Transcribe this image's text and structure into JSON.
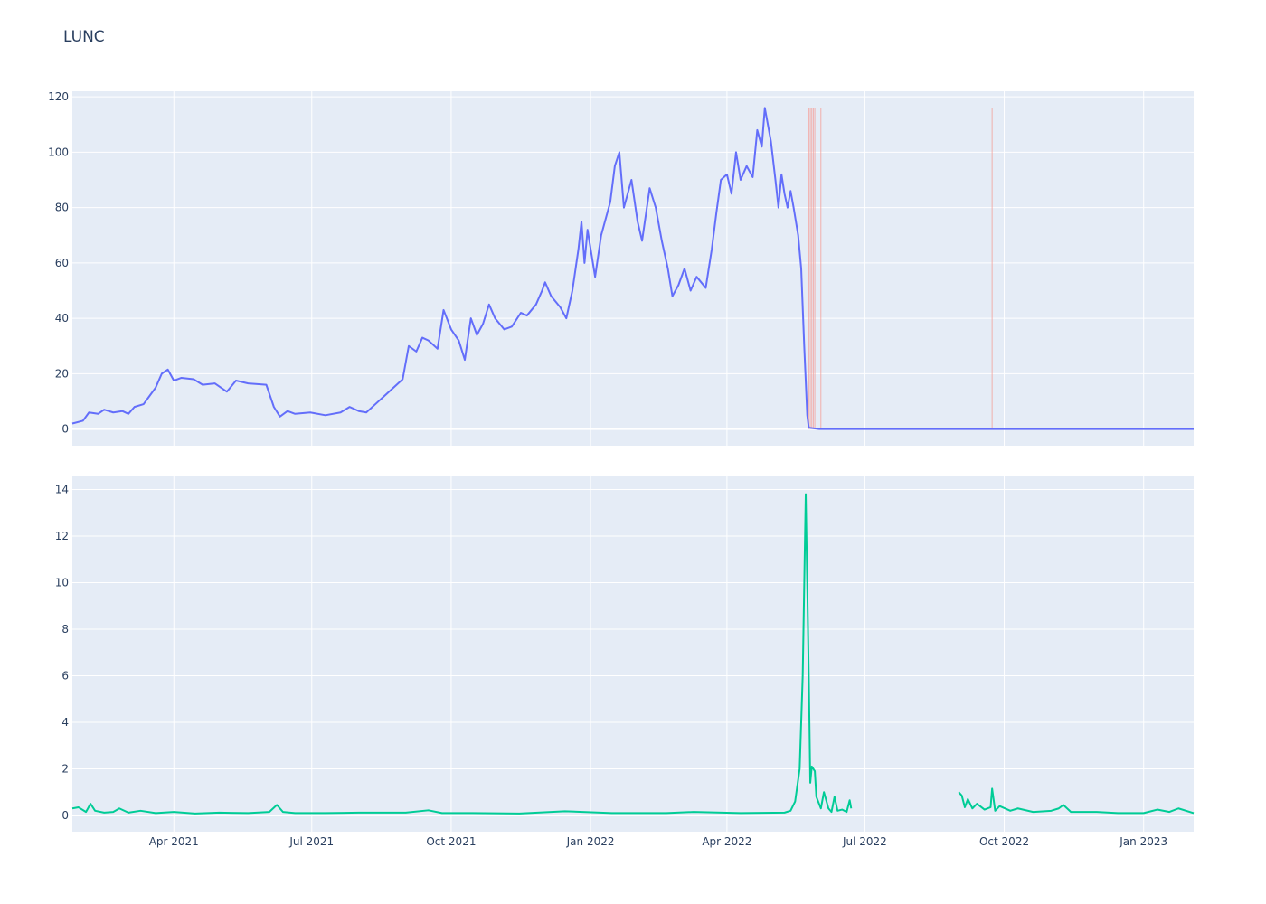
{
  "chart_data": {
    "title": "LUNC",
    "x_ticks": [
      {
        "date": "2021-04-01",
        "label": "Apr 2021"
      },
      {
        "date": "2021-07-01",
        "label": "Jul 2021"
      },
      {
        "date": "2021-10-01",
        "label": "Oct 2021"
      },
      {
        "date": "2022-01-01",
        "label": "Jan 2022"
      },
      {
        "date": "2022-04-01",
        "label": "Apr 2022"
      },
      {
        "date": "2022-07-01",
        "label": "Jul 2022"
      },
      {
        "date": "2022-10-01",
        "label": "Oct 2022"
      },
      {
        "date": "2023-01-01",
        "label": "Jan 2023"
      }
    ],
    "x_range": [
      "2021-01-24",
      "2023-02-03"
    ],
    "panels": [
      {
        "type": "line",
        "ylim": [
          -6,
          122
        ],
        "y_ticks": [
          0,
          20,
          40,
          60,
          80,
          100,
          120
        ],
        "grid": true,
        "series": [
          {
            "color": "#636efa",
            "points": [
              [
                "2021-01-24",
                2
              ],
              [
                "2021-01-31",
                3
              ],
              [
                "2021-02-04",
                6
              ],
              [
                "2021-02-10",
                5.5
              ],
              [
                "2021-02-14",
                7
              ],
              [
                "2021-02-20",
                6
              ],
              [
                "2021-02-26",
                6.5
              ],
              [
                "2021-03-02",
                5.5
              ],
              [
                "2021-03-06",
                8
              ],
              [
                "2021-03-12",
                9
              ],
              [
                "2021-03-16",
                12
              ],
              [
                "2021-03-20",
                15
              ],
              [
                "2021-03-24",
                20
              ],
              [
                "2021-03-28",
                21.5
              ],
              [
                "2021-04-01",
                17.5
              ],
              [
                "2021-04-06",
                18.5
              ],
              [
                "2021-04-14",
                18
              ],
              [
                "2021-04-20",
                16
              ],
              [
                "2021-04-28",
                16.5
              ],
              [
                "2021-05-06",
                13.5
              ],
              [
                "2021-05-12",
                17.5
              ],
              [
                "2021-05-20",
                16.5
              ],
              [
                "2021-06-01",
                16
              ],
              [
                "2021-06-06",
                8
              ],
              [
                "2021-06-10",
                4.5
              ],
              [
                "2021-06-15",
                6.5
              ],
              [
                "2021-06-20",
                5.5
              ],
              [
                "2021-06-30",
                6
              ],
              [
                "2021-07-10",
                5
              ],
              [
                "2021-07-20",
                6
              ],
              [
                "2021-07-26",
                8
              ],
              [
                "2021-08-01",
                6.5
              ],
              [
                "2021-08-06",
                6
              ],
              [
                "2021-08-12",
                9
              ],
              [
                "2021-08-18",
                12
              ],
              [
                "2021-08-22",
                14
              ],
              [
                "2021-08-30",
                18
              ],
              [
                "2021-09-03",
                30
              ],
              [
                "2021-09-08",
                28
              ],
              [
                "2021-09-12",
                33
              ],
              [
                "2021-09-16",
                32
              ],
              [
                "2021-09-22",
                29
              ],
              [
                "2021-09-26",
                43
              ],
              [
                "2021-10-01",
                36
              ],
              [
                "2021-10-06",
                32
              ],
              [
                "2021-10-10",
                25
              ],
              [
                "2021-10-14",
                40
              ],
              [
                "2021-10-18",
                34
              ],
              [
                "2021-10-22",
                38
              ],
              [
                "2021-10-26",
                45
              ],
              [
                "2021-10-30",
                40
              ],
              [
                "2021-11-05",
                36
              ],
              [
                "2021-11-10",
                37
              ],
              [
                "2021-11-16",
                42
              ],
              [
                "2021-11-20",
                41
              ],
              [
                "2021-11-26",
                45
              ],
              [
                "2021-11-30",
                50
              ],
              [
                "2021-12-02",
                53
              ],
              [
                "2021-12-06",
                48
              ],
              [
                "2021-12-12",
                44
              ],
              [
                "2021-12-16",
                40
              ],
              [
                "2021-12-20",
                50
              ],
              [
                "2021-12-24",
                65
              ],
              [
                "2021-12-26",
                75
              ],
              [
                "2021-12-28",
                60
              ],
              [
                "2021-12-30",
                72
              ],
              [
                "2022-01-04",
                55
              ],
              [
                "2022-01-08",
                70
              ],
              [
                "2022-01-14",
                82
              ],
              [
                "2022-01-17",
                95
              ],
              [
                "2022-01-20",
                100
              ],
              [
                "2022-01-23",
                80
              ],
              [
                "2022-01-28",
                90
              ],
              [
                "2022-02-01",
                75
              ],
              [
                "2022-02-04",
                68
              ],
              [
                "2022-02-09",
                87
              ],
              [
                "2022-02-13",
                80
              ],
              [
                "2022-02-17",
                68
              ],
              [
                "2022-02-21",
                58
              ],
              [
                "2022-02-24",
                48
              ],
              [
                "2022-02-28",
                52
              ],
              [
                "2022-03-04",
                58
              ],
              [
                "2022-03-08",
                50
              ],
              [
                "2022-03-12",
                55
              ],
              [
                "2022-03-18",
                51
              ],
              [
                "2022-03-22",
                65
              ],
              [
                "2022-03-25",
                78
              ],
              [
                "2022-03-28",
                90
              ],
              [
                "2022-04-01",
                92
              ],
              [
                "2022-04-04",
                85
              ],
              [
                "2022-04-07",
                100
              ],
              [
                "2022-04-10",
                90
              ],
              [
                "2022-04-14",
                95
              ],
              [
                "2022-04-18",
                91
              ],
              [
                "2022-04-21",
                108
              ],
              [
                "2022-04-24",
                102
              ],
              [
                "2022-04-26",
                116
              ],
              [
                "2022-04-30",
                104
              ],
              [
                "2022-05-03",
                90
              ],
              [
                "2022-05-05",
                80
              ],
              [
                "2022-05-07",
                92
              ],
              [
                "2022-05-09",
                85
              ],
              [
                "2022-05-11",
                80
              ],
              [
                "2022-05-13",
                86
              ],
              [
                "2022-05-15",
                80
              ],
              [
                "2022-05-18",
                70
              ],
              [
                "2022-05-20",
                58
              ],
              [
                "2022-05-22",
                30
              ],
              [
                "2022-05-24",
                5
              ],
              [
                "2022-05-25",
                0.5
              ],
              [
                "2022-06-01",
                0
              ],
              [
                "2022-07-01",
                0
              ],
              [
                "2022-09-01",
                0
              ],
              [
                "2022-11-01",
                0
              ],
              [
                "2023-01-01",
                0
              ],
              [
                "2023-02-03",
                0
              ]
            ]
          }
        ],
        "vlines": {
          "color": "#f4a09a",
          "y_top": 116,
          "dates": [
            "2022-05-25",
            "2022-05-26",
            "2022-05-27",
            "2022-05-28",
            "2022-05-29",
            "2022-06-02",
            "2022-09-23"
          ]
        }
      },
      {
        "type": "line",
        "ylim": [
          -0.7,
          14.6
        ],
        "y_ticks": [
          0,
          2,
          4,
          6,
          8,
          10,
          12,
          14
        ],
        "grid": true,
        "series": [
          {
            "color": "#00cc96",
            "segments": [
              [
                [
                  "2021-01-24",
                  0.3
                ],
                [
                  "2021-01-28",
                  0.35
                ],
                [
                  "2021-02-02",
                  0.15
                ],
                [
                  "2021-02-05",
                  0.5
                ],
                [
                  "2021-02-08",
                  0.2
                ],
                [
                  "2021-02-14",
                  0.12
                ],
                [
                  "2021-02-20",
                  0.15
                ],
                [
                  "2021-02-24",
                  0.3
                ],
                [
                  "2021-03-02",
                  0.12
                ],
                [
                  "2021-03-10",
                  0.2
                ],
                [
                  "2021-03-20",
                  0.1
                ],
                [
                  "2021-04-01",
                  0.15
                ],
                [
                  "2021-04-15",
                  0.08
                ],
                [
                  "2021-05-01",
                  0.12
                ],
                [
                  "2021-05-20",
                  0.1
                ],
                [
                  "2021-06-03",
                  0.15
                ],
                [
                  "2021-06-08",
                  0.45
                ],
                [
                  "2021-06-12",
                  0.15
                ],
                [
                  "2021-06-20",
                  0.1
                ],
                [
                  "2021-07-10",
                  0.1
                ],
                [
                  "2021-08-01",
                  0.12
                ],
                [
                  "2021-09-01",
                  0.12
                ],
                [
                  "2021-09-16",
                  0.22
                ],
                [
                  "2021-09-25",
                  0.1
                ],
                [
                  "2021-10-15",
                  0.1
                ],
                [
                  "2021-11-15",
                  0.08
                ],
                [
                  "2021-12-15",
                  0.18
                ],
                [
                  "2022-01-15",
                  0.1
                ],
                [
                  "2022-02-20",
                  0.1
                ],
                [
                  "2022-03-10",
                  0.15
                ],
                [
                  "2022-04-10",
                  0.1
                ],
                [
                  "2022-05-09",
                  0.12
                ],
                [
                  "2022-05-13",
                  0.2
                ],
                [
                  "2022-05-16",
                  0.6
                ],
                [
                  "2022-05-19",
                  2
                ],
                [
                  "2022-05-21",
                  6
                ],
                [
                  "2022-05-23",
                  13.8
                ],
                [
                  "2022-05-25",
                  6
                ],
                [
                  "2022-05-26",
                  1.4
                ],
                [
                  "2022-05-27",
                  2.1
                ],
                [
                  "2022-05-29",
                  1.9
                ],
                [
                  "2022-05-30",
                  0.8
                ],
                [
                  "2022-06-02",
                  0.3
                ],
                [
                  "2022-06-04",
                  1.0
                ],
                [
                  "2022-06-07",
                  0.3
                ],
                [
                  "2022-06-09",
                  0.15
                ],
                [
                  "2022-06-11",
                  0.8
                ],
                [
                  "2022-06-13",
                  0.2
                ],
                [
                  "2022-06-16",
                  0.25
                ],
                [
                  "2022-06-19",
                  0.15
                ],
                [
                  "2022-06-21",
                  0.65
                ],
                [
                  "2022-06-22",
                  0.3
                ]
              ],
              [
                [
                  "2022-09-01",
                  1.0
                ],
                [
                  "2022-09-03",
                  0.85
                ],
                [
                  "2022-09-05",
                  0.35
                ],
                [
                  "2022-09-07",
                  0.7
                ],
                [
                  "2022-09-10",
                  0.3
                ],
                [
                  "2022-09-13",
                  0.5
                ],
                [
                  "2022-09-18",
                  0.25
                ],
                [
                  "2022-09-22",
                  0.35
                ],
                [
                  "2022-09-23",
                  1.15
                ],
                [
                  "2022-09-25",
                  0.2
                ],
                [
                  "2022-09-28",
                  0.4
                ],
                [
                  "2022-10-05",
                  0.2
                ],
                [
                  "2022-10-10",
                  0.3
                ],
                [
                  "2022-10-20",
                  0.15
                ],
                [
                  "2022-11-01",
                  0.2
                ],
                [
                  "2022-11-06",
                  0.3
                ],
                [
                  "2022-11-09",
                  0.45
                ],
                [
                  "2022-11-14",
                  0.15
                ],
                [
                  "2022-12-01",
                  0.15
                ],
                [
                  "2022-12-15",
                  0.1
                ],
                [
                  "2023-01-01",
                  0.1
                ],
                [
                  "2023-01-10",
                  0.25
                ],
                [
                  "2023-01-18",
                  0.15
                ],
                [
                  "2023-01-24",
                  0.3
                ],
                [
                  "2023-02-03",
                  0.1
                ]
              ]
            ]
          }
        ]
      }
    ]
  }
}
